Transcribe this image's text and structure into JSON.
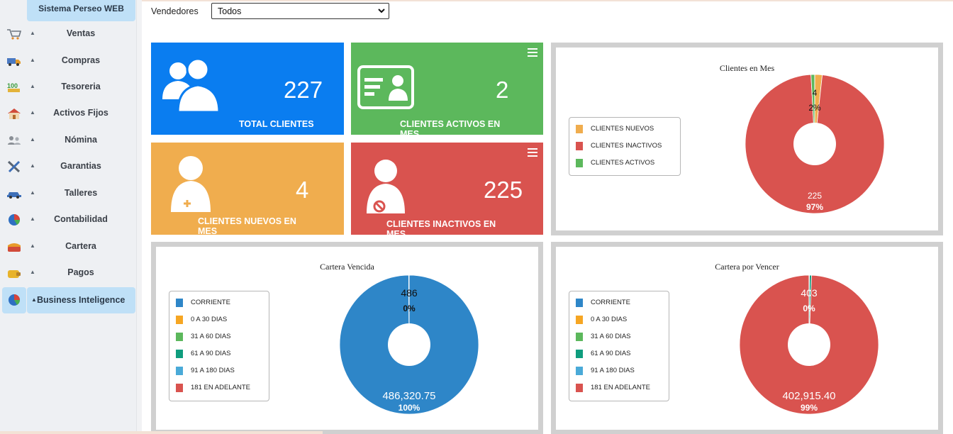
{
  "sidebar": {
    "app_title": "Sistema Perseo WEB",
    "items": [
      {
        "label": "Ventas",
        "icon": "cart-icon",
        "active": false
      },
      {
        "label": "Compras",
        "icon": "truck-icon",
        "active": false
      },
      {
        "label": "Tesoreria",
        "icon": "money-icon",
        "active": false
      },
      {
        "label": "Activos Fijos",
        "icon": "house-icon",
        "active": false
      },
      {
        "label": "Nómina",
        "icon": "people-icon",
        "active": false
      },
      {
        "label": "Garantias",
        "icon": "tools-icon",
        "active": false
      },
      {
        "label": "Talleres",
        "icon": "car-icon",
        "active": false
      },
      {
        "label": "Contabilidad",
        "icon": "pie-icon",
        "active": false
      },
      {
        "label": "Cartera",
        "icon": "wallet-icon",
        "active": false
      },
      {
        "label": "Pagos",
        "icon": "purse-icon",
        "active": false
      },
      {
        "label": "Business Inteligence",
        "icon": "pie-icon",
        "active": true
      }
    ]
  },
  "filter": {
    "label": "Vendedores",
    "selected": "Todos"
  },
  "tiles": [
    {
      "value": "227",
      "label": "TOTAL CLIENTES",
      "color": "#0a7df0",
      "icon": "users-icon"
    },
    {
      "value": "2",
      "label": "CLIENTES ACTIVOS EN MES",
      "color": "#5cb85c",
      "icon": "id-card-icon"
    },
    {
      "value": "4",
      "label": "CLIENTES NUEVOS EN MES",
      "color": "#f0ad4e",
      "icon": "user-add-icon"
    },
    {
      "value": "225",
      "label": "CLIENTES INACTIVOS EN MES",
      "color": "#d9534f",
      "icon": "user-blocked-icon"
    }
  ],
  "colors": {
    "corriente": "#2e86c8",
    "dias_0_30": "#f6a623",
    "dias_31_60": "#5cb85c",
    "dias_61_90": "#0f9d7e",
    "dias_91_180": "#4aaad8",
    "dias_181": "#d9534f",
    "nuevos": "#f0ad4e",
    "inactivos": "#d9534f",
    "activos": "#5cb85c"
  },
  "chart_data": [
    {
      "type": "pie",
      "title": "Clientes en Mes",
      "legend_position": "left",
      "series": [
        {
          "name": "CLIENTES NUEVOS",
          "value": 4,
          "percent": "2%",
          "color": "#f0ad4e"
        },
        {
          "name": "CLIENTES INACTIVOS",
          "value": 225,
          "percent": "97%",
          "color": "#d9534f"
        },
        {
          "name": "CLIENTES ACTIVOS",
          "value": 2,
          "percent": "",
          "color": "#5cb85c"
        }
      ],
      "data_labels": [
        {
          "value": "4",
          "percent": "2%"
        },
        {
          "value": "225",
          "percent": "97%"
        }
      ]
    },
    {
      "type": "pie",
      "title": "Cartera Vencida",
      "legend_position": "left",
      "series": [
        {
          "name": "CORRIENTE",
          "value": 486320.75,
          "color": "#2e86c8"
        },
        {
          "name": "0 A 30 DIAS",
          "value": 0,
          "color": "#f6a623"
        },
        {
          "name": "31 A 60 DIAS",
          "value": 0,
          "color": "#5cb85c"
        },
        {
          "name": "61 A 90 DIAS",
          "value": 0,
          "color": "#0f9d7e"
        },
        {
          "name": "91 A 180 DIAS",
          "value": 0,
          "color": "#4aaad8"
        },
        {
          "name": "181 EN ADELANTE",
          "value": 486,
          "color": "#d9534f"
        }
      ],
      "data_labels": [
        {
          "value": "486",
          "percent": "0%"
        },
        {
          "value": "486,320.75",
          "percent": "100%"
        }
      ]
    },
    {
      "type": "pie",
      "title": "Cartera por Vencer",
      "legend_position": "left",
      "series": [
        {
          "name": "CORRIENTE",
          "value": 403,
          "color": "#2e86c8"
        },
        {
          "name": "0 A 30 DIAS",
          "value": 0,
          "color": "#f6a623"
        },
        {
          "name": "31 A 60 DIAS",
          "value": 0,
          "color": "#5cb85c"
        },
        {
          "name": "61 A 90 DIAS",
          "value": 1900,
          "color": "#0f9d7e"
        },
        {
          "name": "91 A 180 DIAS",
          "value": 0,
          "color": "#4aaad8"
        },
        {
          "name": "181 EN ADELANTE",
          "value": 402915.4,
          "color": "#d9534f"
        }
      ],
      "data_labels": [
        {
          "value": "403",
          "percent": "0%"
        },
        {
          "value": "402,915.40",
          "percent": "99%"
        }
      ]
    }
  ]
}
